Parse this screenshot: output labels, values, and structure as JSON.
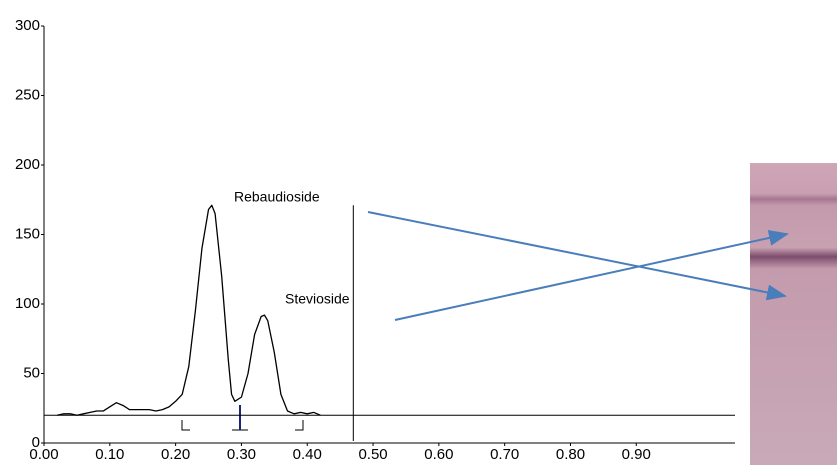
{
  "chart_data": {
    "type": "line",
    "annotations": [
      "Rebaudioside",
      "Stevioside"
    ],
    "x": [
      0.02,
      0.03,
      0.04,
      0.05,
      0.06,
      0.07,
      0.08,
      0.09,
      0.1,
      0.11,
      0.12,
      0.13,
      0.14,
      0.15,
      0.16,
      0.17,
      0.18,
      0.19,
      0.2,
      0.21,
      0.22,
      0.23,
      0.24,
      0.25,
      0.255,
      0.26,
      0.27,
      0.28,
      0.285,
      0.29,
      0.3,
      0.31,
      0.32,
      0.33,
      0.335,
      0.34,
      0.35,
      0.36,
      0.37,
      0.38,
      0.39,
      0.4,
      0.41,
      0.42
    ],
    "series": [
      {
        "color": "#000000",
        "values": [
          20,
          21,
          21,
          20,
          21,
          22,
          23,
          23,
          26,
          29,
          27,
          24,
          24,
          24,
          24,
          23,
          24,
          26,
          30,
          35,
          55,
          95,
          140,
          168,
          171,
          165,
          120,
          60,
          35,
          30,
          33,
          50,
          78,
          91,
          92,
          88,
          65,
          35,
          23,
          21,
          22,
          21,
          22,
          20
        ]
      }
    ],
    "baseline": 20,
    "front": 0.47,
    "xlim": [
      0,
      1.05
    ],
    "ylim": [
      0,
      300
    ],
    "yticks": [
      0,
      50,
      100,
      150,
      200,
      250,
      300
    ],
    "xticks": [
      {
        "value": 0,
        "label": "0.00"
      },
      {
        "value": 0.1,
        "label": "0.10"
      },
      {
        "value": 0.2,
        "label": "0.20"
      },
      {
        "value": 0.3,
        "label": "0.30"
      },
      {
        "value": 0.4,
        "label": "0.40"
      },
      {
        "value": 0.5,
        "label": "0.50"
      },
      {
        "value": 0.6,
        "label": "0.60"
      },
      {
        "value": 0.7,
        "label": "0.70"
      },
      {
        "value": 0.8,
        "label": "0.80"
      },
      {
        "value": 0.9,
        "label": "0.90"
      }
    ]
  }
}
